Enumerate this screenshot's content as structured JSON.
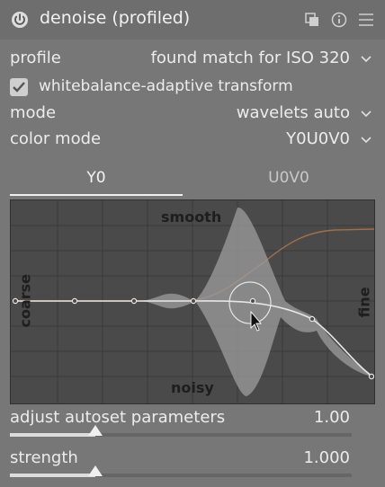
{
  "module": {
    "title": "denoise (profiled)",
    "icons": [
      "power-icon",
      "presets-icon",
      "reset-icon",
      "menu-icon"
    ]
  },
  "profile": {
    "label": "profile",
    "value": "found match for ISO 320"
  },
  "whitebalance": {
    "label": "whitebalance-adaptive transform",
    "checked": true
  },
  "mode": {
    "label": "mode",
    "value": "wavelets auto"
  },
  "color_mode": {
    "label": "color mode",
    "value": "Y0U0V0"
  },
  "tabs": [
    {
      "label": "Y0",
      "active": true
    },
    {
      "label": "U0V0",
      "active": false
    }
  ],
  "graph": {
    "top_label": "smooth",
    "bottom_label": "noisy",
    "left_label": "coarse",
    "right_label": "fine"
  },
  "sliders": [
    {
      "label": "adjust autoset parameters",
      "value": "1.00",
      "fraction": 0.25
    },
    {
      "label": "strength",
      "value": "1.000",
      "fraction": 0.25
    }
  ],
  "colors": {
    "panel_bg": "#777777",
    "graph_bg": "#4a4a4a",
    "curve": "#e6e6e6",
    "chroma_curve": "#a0704a"
  }
}
